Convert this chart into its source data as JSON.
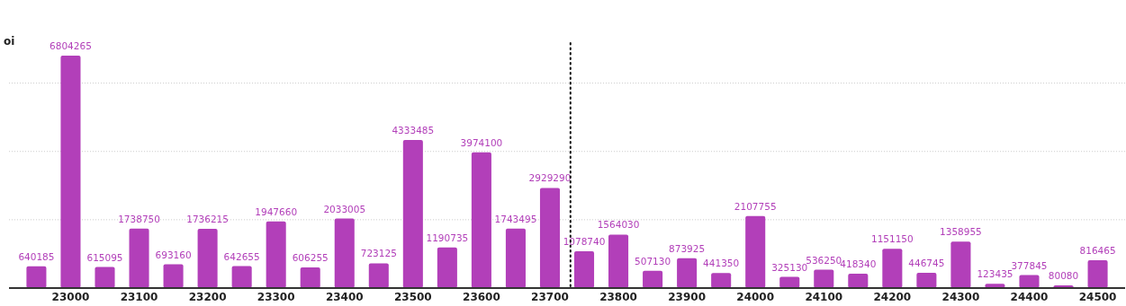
{
  "chart_data": {
    "type": "bar",
    "ylabel": "oi",
    "x": [
      22950,
      23000,
      23050,
      23100,
      23150,
      23200,
      23250,
      23300,
      23350,
      23400,
      23450,
      23500,
      23550,
      23600,
      23650,
      23700,
      23750,
      23800,
      23850,
      23900,
      23950,
      24000,
      24050,
      24100,
      24150,
      24200,
      24250,
      24300,
      24350,
      24400,
      24450,
      24500
    ],
    "values": [
      640185,
      6804265,
      615095,
      1738750,
      693160,
      1736215,
      642655,
      1947660,
      606255,
      2033005,
      723125,
      4333485,
      1190735,
      3974100,
      1743495,
      2929290,
      1078740,
      1564030,
      507130,
      873925,
      441350,
      2107755,
      325130,
      536250,
      418340,
      1151150,
      446745,
      1358955,
      123435,
      377845,
      80080,
      816465
    ],
    "color": "#b23fb9",
    "data_labels": true,
    "xlim": [
      22910,
      24540
    ],
    "xticks": [
      23000,
      23100,
      23200,
      23300,
      23400,
      23500,
      23600,
      23700,
      23800,
      23900,
      24000,
      24100,
      24200,
      24300,
      24400,
      24500
    ],
    "yticks": [
      {
        "value": 0,
        "label": null
      },
      {
        "value": 2000000,
        "label": null
      },
      {
        "value": 4000000,
        "label": null
      },
      {
        "value": 6000000,
        "label": null
      }
    ],
    "grid": "y",
    "tick_labels": "x",
    "ref_lines": [
      {
        "axis": "x",
        "value": 23730,
        "line_style": "dotted",
        "color": "#111111"
      }
    ]
  }
}
